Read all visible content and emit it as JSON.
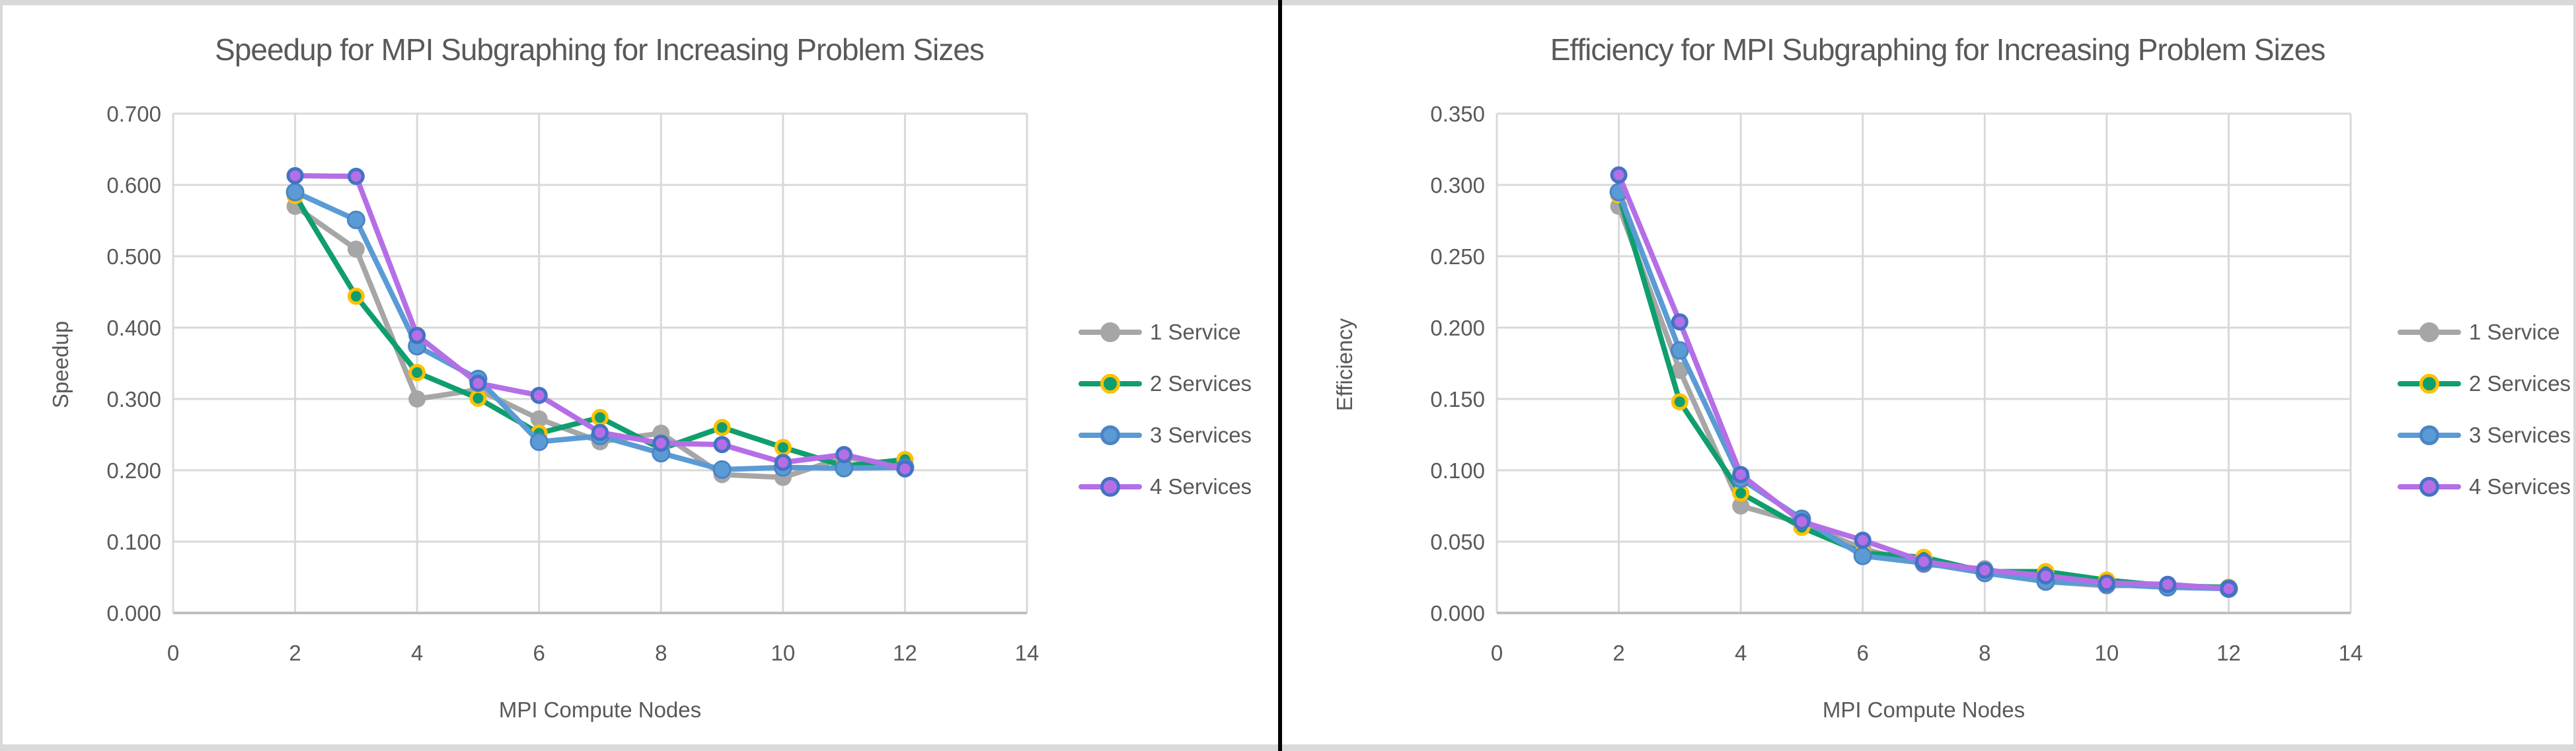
{
  "page": {
    "background_color": "#D9D9D9",
    "panel_color": "#FFFFFF",
    "divider_color": "#000000",
    "text_color": "#595959",
    "gridline_color": "#D9D9D9",
    "axis_line_color": "#BFBFBF"
  },
  "chart_data": [
    {
      "type": "line",
      "title": "Speedup for MPI Subgraphing for Increasing Problem Sizes",
      "xlabel": "MPI Compute Nodes",
      "ylabel": "Speedup",
      "x_axis": {
        "min": 0,
        "max": 14,
        "tick_step": 2,
        "tick_labels": [
          "0",
          "2",
          "4",
          "6",
          "8",
          "10",
          "12",
          "14"
        ]
      },
      "y_axis": {
        "min": 0,
        "max": 0.7,
        "tick_step": 0.1,
        "tick_labels": [
          "0.000",
          "0.100",
          "0.200",
          "0.300",
          "0.400",
          "0.500",
          "0.600",
          "0.700"
        ]
      },
      "grid": true,
      "legend_position": "right",
      "x": [
        2,
        3,
        4,
        5,
        6,
        7,
        8,
        9,
        10,
        11,
        12
      ],
      "series": [
        {
          "name": "1 Service",
          "line_color": "#A6A6A6",
          "marker_fill": "#A6A6A6",
          "marker_stroke": "none",
          "marker_radius": 13,
          "marker_stroke_width": 0,
          "values": [
            0.57,
            0.51,
            0.3,
            0.313,
            0.272,
            0.24,
            0.252,
            0.194,
            0.19,
            0.218,
            0.206
          ]
        },
        {
          "name": "2 Services",
          "line_color": "#0F9E6E",
          "marker_fill": "#0F9E6E",
          "marker_stroke": "#FFC000",
          "marker_radius": 10.5,
          "marker_stroke_width": 5,
          "values": [
            0.585,
            0.444,
            0.337,
            0.301,
            0.252,
            0.274,
            0.23,
            0.26,
            0.232,
            0.206,
            0.215
          ]
        },
        {
          "name": "3 Services",
          "line_color": "#5B9BD5",
          "marker_fill": "#5B9BD5",
          "marker_stroke": "#4B84C4",
          "marker_radius": 12.5,
          "marker_stroke_width": 3,
          "values": [
            0.59,
            0.551,
            0.374,
            0.328,
            0.24,
            0.248,
            0.224,
            0.201,
            0.204,
            0.203,
            0.204
          ]
        },
        {
          "name": "4 Services",
          "line_color": "#B56FE6",
          "marker_fill": "#B56FE6",
          "marker_stroke": "#4472C4",
          "marker_radius": 10.5,
          "marker_stroke_width": 5,
          "values": [
            0.613,
            0.612,
            0.389,
            0.322,
            0.305,
            0.253,
            0.238,
            0.236,
            0.211,
            0.222,
            0.202
          ]
        }
      ]
    },
    {
      "type": "line",
      "title": "Efficiency for MPI Subgraphing for Increasing Problem Sizes",
      "xlabel": "MPI Compute Nodes",
      "ylabel": "Efficiency",
      "x_axis": {
        "min": 0,
        "max": 14,
        "tick_step": 2,
        "tick_labels": [
          "0",
          "2",
          "4",
          "6",
          "8",
          "10",
          "12",
          "14"
        ]
      },
      "y_axis": {
        "min": 0,
        "max": 0.35,
        "tick_step": 0.05,
        "tick_labels": [
          "0.000",
          "0.050",
          "0.100",
          "0.150",
          "0.200",
          "0.250",
          "0.300",
          "0.350"
        ]
      },
      "grid": true,
      "legend_position": "right",
      "x": [
        2,
        3,
        4,
        5,
        6,
        7,
        8,
        9,
        10,
        11,
        12
      ],
      "series": [
        {
          "name": "1 Service",
          "line_color": "#A6A6A6",
          "marker_fill": "#A6A6A6",
          "marker_stroke": "none",
          "marker_radius": 13,
          "marker_stroke_width": 0,
          "values": [
            0.285,
            0.17,
            0.075,
            0.063,
            0.045,
            0.034,
            0.031,
            0.022,
            0.019,
            0.02,
            0.017
          ]
        },
        {
          "name": "2 Services",
          "line_color": "#0F9E6E",
          "marker_fill": "#0F9E6E",
          "marker_stroke": "#FFC000",
          "marker_radius": 10.5,
          "marker_stroke_width": 5,
          "values": [
            0.293,
            0.148,
            0.084,
            0.06,
            0.042,
            0.039,
            0.029,
            0.029,
            0.023,
            0.019,
            0.018
          ]
        },
        {
          "name": "3 Services",
          "line_color": "#5B9BD5",
          "marker_fill": "#5B9BD5",
          "marker_stroke": "#4B84C4",
          "marker_radius": 12.5,
          "marker_stroke_width": 3,
          "values": [
            0.295,
            0.184,
            0.094,
            0.066,
            0.04,
            0.035,
            0.028,
            0.022,
            0.02,
            0.018,
            0.017
          ]
        },
        {
          "name": "4 Services",
          "line_color": "#B56FE6",
          "marker_fill": "#B56FE6",
          "marker_stroke": "#4472C4",
          "marker_radius": 10.5,
          "marker_stroke_width": 5,
          "values": [
            0.307,
            0.204,
            0.097,
            0.064,
            0.051,
            0.036,
            0.03,
            0.026,
            0.021,
            0.02,
            0.017
          ]
        }
      ]
    }
  ]
}
